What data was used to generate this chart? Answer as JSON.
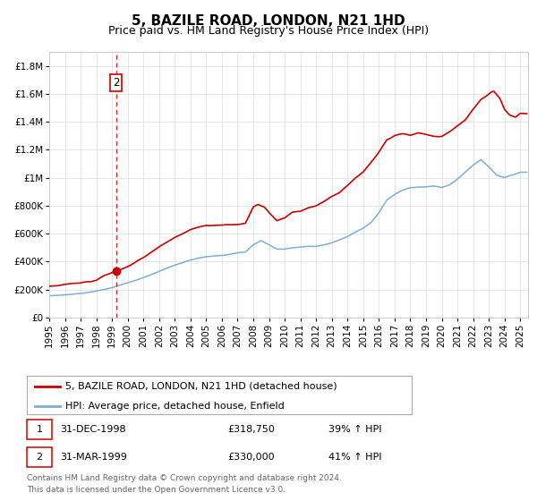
{
  "title": "5, BAZILE ROAD, LONDON, N21 1HD",
  "subtitle": "Price paid vs. HM Land Registry's House Price Index (HPI)",
  "xlim": [
    1995.0,
    2025.5
  ],
  "ylim": [
    0,
    1900000
  ],
  "yticks": [
    0,
    200000,
    400000,
    600000,
    800000,
    1000000,
    1200000,
    1400000,
    1600000,
    1800000
  ],
  "ytick_labels": [
    "£0",
    "£200K",
    "£400K",
    "£600K",
    "£800K",
    "£1M",
    "£1.2M",
    "£1.4M",
    "£1.6M",
    "£1.8M"
  ],
  "xtick_years": [
    1995,
    1996,
    1997,
    1998,
    1999,
    2000,
    2001,
    2002,
    2003,
    2004,
    2005,
    2006,
    2007,
    2008,
    2009,
    2010,
    2011,
    2012,
    2013,
    2014,
    2015,
    2016,
    2017,
    2018,
    2019,
    2020,
    2021,
    2022,
    2023,
    2024,
    2025
  ],
  "hpi_color": "#7bafd4",
  "price_color": "#cc0000",
  "background_color": "#ffffff",
  "grid_color": "#dddddd",
  "legend_label_price": "5, BAZILE ROAD, LONDON, N21 1HD (detached house)",
  "legend_label_hpi": "HPI: Average price, detached house, Enfield",
  "transaction1_label": "1",
  "transaction1_date": "31-DEC-1998",
  "transaction1_price": "£318,750",
  "transaction1_hpi": "39% ↑ HPI",
  "transaction1_year": 1998.958,
  "transaction1_value": 318750,
  "transaction2_label": "2",
  "transaction2_date": "31-MAR-1999",
  "transaction2_price": "£330,000",
  "transaction2_hpi": "41% ↑ HPI",
  "transaction2_year": 1999.25,
  "transaction2_value": 330000,
  "dashed_vline_year": 1999.25,
  "footer_line1": "Contains HM Land Registry data © Crown copyright and database right 2024.",
  "footer_line2": "This data is licensed under the Open Government Licence v3.0.",
  "title_fontsize": 11,
  "subtitle_fontsize": 9,
  "tick_fontsize": 7.5,
  "legend_fontsize": 8,
  "footer_fontsize": 6.5
}
